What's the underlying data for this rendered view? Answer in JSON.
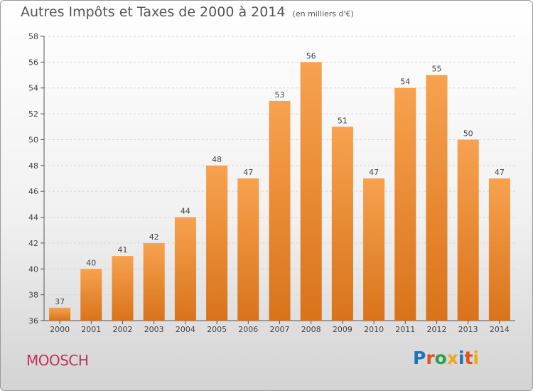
{
  "title": "Autres Impôts et Taxes de 2000 à 2014",
  "subtitle": "(en milliers d'€)",
  "town": "MOOSCH",
  "logo": {
    "text": "Proxiti",
    "colors": [
      "#1e73be",
      "#e84e1b",
      "#2f9e44",
      "#f2a71b",
      "#1e73be",
      "#e84e1b",
      "#f2a71b"
    ]
  },
  "colors": {
    "bar_top": "#f7a24f",
    "bar_bottom": "#d9731a",
    "grid": "#d6d6d6",
    "axis": "#555555"
  },
  "chart_data": {
    "type": "bar",
    "title": "Autres Impôts et Taxes de 2000 à 2014",
    "ylabel": "en milliers d'€",
    "xlabel": "",
    "grid": true,
    "categories": [
      "2000",
      "2001",
      "2002",
      "2003",
      "2004",
      "2005",
      "2006",
      "2007",
      "2008",
      "2009",
      "2010",
      "2011",
      "2012",
      "2013",
      "2014"
    ],
    "values": [
      37,
      40,
      41,
      42,
      44,
      48,
      47,
      53,
      56,
      51,
      47,
      54,
      55,
      50,
      47
    ],
    "ylim": [
      36,
      58
    ],
    "yticks": [
      36,
      38,
      40,
      42,
      44,
      46,
      48,
      50,
      52,
      54,
      56,
      58
    ]
  }
}
